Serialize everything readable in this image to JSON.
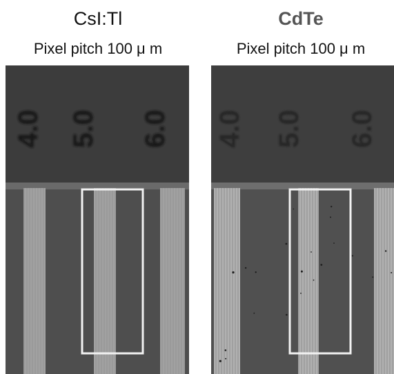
{
  "left": {
    "title": "CsI:Tl",
    "subtitle": "Pixel pitch 100 μ m",
    "top_region_color": "#3c3c3c",
    "bottom_region_color": "#4e4e4e",
    "bar_color": "#9a9a9a",
    "box_color": "#f2f2f2",
    "numerals": [
      "4.0",
      "5.0",
      "6.0"
    ]
  },
  "right": {
    "title": "CdTe",
    "subtitle": "Pixel pitch 100 μ m",
    "top_region_color": "#3e3e3e",
    "bottom_region_color": "#505050",
    "bar_color": "#a0a0a0",
    "box_color": "#f2f2f2",
    "numerals": [
      "4.0",
      "5.0",
      "6.0"
    ]
  }
}
